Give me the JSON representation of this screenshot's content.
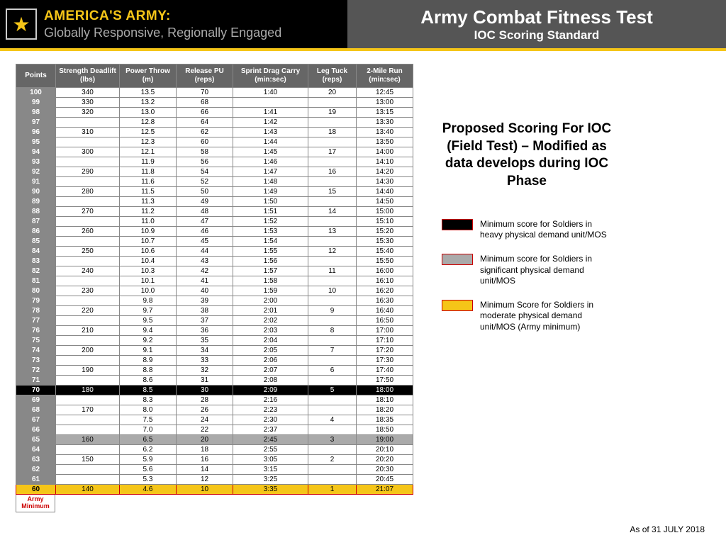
{
  "header": {
    "brand_line1": "AMERICA'S ARMY:",
    "brand_line2": "Globally Responsive, Regionally Engaged",
    "title": "Army Combat Fitness Test",
    "subtitle": "IOC Scoring Standard"
  },
  "table": {
    "columns": [
      "Points",
      "Strength Deadlift (lbs)",
      "Power Throw (m)",
      "Release PU (reps)",
      "Sprint Drag Carry (min:sec)",
      "Leg Tuck (reps)",
      "2-Mile Run (min:sec)"
    ],
    "rows": [
      {
        "pts": "100",
        "v": [
          "340",
          "13.5",
          "70",
          "1:40",
          "20",
          "12:45"
        ],
        "hl": ""
      },
      {
        "pts": "99",
        "v": [
          "330",
          "13.2",
          "68",
          "",
          "",
          "13:00"
        ],
        "hl": ""
      },
      {
        "pts": "98",
        "v": [
          "320",
          "13.0",
          "66",
          "1:41",
          "19",
          "13:15"
        ],
        "hl": ""
      },
      {
        "pts": "97",
        "v": [
          "",
          "12.8",
          "64",
          "1:42",
          "",
          "13:30"
        ],
        "hl": ""
      },
      {
        "pts": "96",
        "v": [
          "310",
          "12.5",
          "62",
          "1:43",
          "18",
          "13:40"
        ],
        "hl": ""
      },
      {
        "pts": "95",
        "v": [
          "",
          "12.3",
          "60",
          "1:44",
          "",
          "13:50"
        ],
        "hl": ""
      },
      {
        "pts": "94",
        "v": [
          "300",
          "12.1",
          "58",
          "1:45",
          "17",
          "14:00"
        ],
        "hl": ""
      },
      {
        "pts": "93",
        "v": [
          "",
          "11.9",
          "56",
          "1:46",
          "",
          "14:10"
        ],
        "hl": ""
      },
      {
        "pts": "92",
        "v": [
          "290",
          "11.8",
          "54",
          "1:47",
          "16",
          "14:20"
        ],
        "hl": ""
      },
      {
        "pts": "91",
        "v": [
          "",
          "11.6",
          "52",
          "1:48",
          "",
          "14:30"
        ],
        "hl": ""
      },
      {
        "pts": "90",
        "v": [
          "280",
          "11.5",
          "50",
          "1:49",
          "15",
          "14:40"
        ],
        "hl": ""
      },
      {
        "pts": "89",
        "v": [
          "",
          "11.3",
          "49",
          "1:50",
          "",
          "14:50"
        ],
        "hl": ""
      },
      {
        "pts": "88",
        "v": [
          "270",
          "11.2",
          "48",
          "1:51",
          "14",
          "15:00"
        ],
        "hl": ""
      },
      {
        "pts": "87",
        "v": [
          "",
          "11.0",
          "47",
          "1:52",
          "",
          "15:10"
        ],
        "hl": ""
      },
      {
        "pts": "86",
        "v": [
          "260",
          "10.9",
          "46",
          "1:53",
          "13",
          "15:20"
        ],
        "hl": ""
      },
      {
        "pts": "85",
        "v": [
          "",
          "10.7",
          "45",
          "1:54",
          "",
          "15:30"
        ],
        "hl": ""
      },
      {
        "pts": "84",
        "v": [
          "250",
          "10.6",
          "44",
          "1:55",
          "12",
          "15:40"
        ],
        "hl": ""
      },
      {
        "pts": "83",
        "v": [
          "",
          "10.4",
          "43",
          "1:56",
          "",
          "15:50"
        ],
        "hl": ""
      },
      {
        "pts": "82",
        "v": [
          "240",
          "10.3",
          "42",
          "1:57",
          "11",
          "16:00"
        ],
        "hl": ""
      },
      {
        "pts": "81",
        "v": [
          "",
          "10.1",
          "41",
          "1:58",
          "",
          "16:10"
        ],
        "hl": ""
      },
      {
        "pts": "80",
        "v": [
          "230",
          "10.0",
          "40",
          "1:59",
          "10",
          "16:20"
        ],
        "hl": ""
      },
      {
        "pts": "79",
        "v": [
          "",
          "9.8",
          "39",
          "2:00",
          "",
          "16:30"
        ],
        "hl": ""
      },
      {
        "pts": "78",
        "v": [
          "220",
          "9.7",
          "38",
          "2:01",
          "9",
          "16:40"
        ],
        "hl": ""
      },
      {
        "pts": "77",
        "v": [
          "",
          "9.5",
          "37",
          "2:02",
          "",
          "16:50"
        ],
        "hl": ""
      },
      {
        "pts": "76",
        "v": [
          "210",
          "9.4",
          "36",
          "2:03",
          "8",
          "17:00"
        ],
        "hl": ""
      },
      {
        "pts": "75",
        "v": [
          "",
          "9.2",
          "35",
          "2:04",
          "",
          "17:10"
        ],
        "hl": ""
      },
      {
        "pts": "74",
        "v": [
          "200",
          "9.1",
          "34",
          "2:05",
          "7",
          "17:20"
        ],
        "hl": ""
      },
      {
        "pts": "73",
        "v": [
          "",
          "8.9",
          "33",
          "2:06",
          "",
          "17:30"
        ],
        "hl": ""
      },
      {
        "pts": "72",
        "v": [
          "190",
          "8.8",
          "32",
          "2:07",
          "6",
          "17:40"
        ],
        "hl": ""
      },
      {
        "pts": "71",
        "v": [
          "",
          "8.6",
          "31",
          "2:08",
          "",
          "17:50"
        ],
        "hl": ""
      },
      {
        "pts": "70",
        "v": [
          "180",
          "8.5",
          "30",
          "2:09",
          "5",
          "18:00"
        ],
        "hl": "black"
      },
      {
        "pts": "69",
        "v": [
          "",
          "8.3",
          "28",
          "2:16",
          "",
          "18:10"
        ],
        "hl": ""
      },
      {
        "pts": "68",
        "v": [
          "170",
          "8.0",
          "26",
          "2:23",
          "",
          "18:20"
        ],
        "hl": ""
      },
      {
        "pts": "67",
        "v": [
          "",
          "7.5",
          "24",
          "2:30",
          "4",
          "18:35"
        ],
        "hl": ""
      },
      {
        "pts": "66",
        "v": [
          "",
          "7.0",
          "22",
          "2:37",
          "",
          "18:50"
        ],
        "hl": ""
      },
      {
        "pts": "65",
        "v": [
          "160",
          "6.5",
          "20",
          "2:45",
          "3",
          "19:00"
        ],
        "hl": "gray"
      },
      {
        "pts": "64",
        "v": [
          "",
          "6.2",
          "18",
          "2:55",
          "",
          "20:10"
        ],
        "hl": ""
      },
      {
        "pts": "63",
        "v": [
          "150",
          "5.9",
          "16",
          "3:05",
          "2",
          "20:20"
        ],
        "hl": ""
      },
      {
        "pts": "62",
        "v": [
          "",
          "5.6",
          "14",
          "3:15",
          "",
          "20:30"
        ],
        "hl": ""
      },
      {
        "pts": "61",
        "v": [
          "",
          "5.3",
          "12",
          "3:25",
          "",
          "20:45"
        ],
        "hl": ""
      },
      {
        "pts": "60",
        "v": [
          "140",
          "4.6",
          "10",
          "3:35",
          "1",
          "21:07"
        ],
        "hl": "yellow"
      }
    ],
    "army_min": "Army Minimum"
  },
  "sidebar": {
    "proposed": "Proposed Scoring For IOC (Field Test) – Modified as data develops during IOC Phase",
    "legend": [
      {
        "cls": "sw-black",
        "text": "Minimum score for Soldiers in heavy physical demand unit/MOS"
      },
      {
        "cls": "sw-gray",
        "text": "Minimum score for Soldiers in significant physical demand unit/MOS"
      },
      {
        "cls": "sw-yellow",
        "text": "Minimum Score for Soldiers in moderate physical demand unit/MOS (Army minimum)"
      }
    ]
  },
  "date": "As of 31 JULY 2018"
}
